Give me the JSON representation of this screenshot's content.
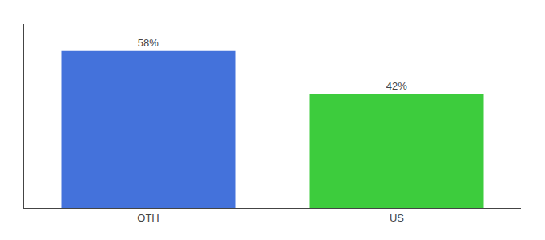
{
  "chart_data": {
    "type": "bar",
    "categories": [
      "OTH",
      "US"
    ],
    "values": [
      58,
      42
    ],
    "value_labels": [
      "58%",
      "42%"
    ],
    "colors": [
      "#4472db",
      "#3dcc3d"
    ],
    "ylim": [
      0,
      68
    ],
    "data_labels": true,
    "tick_labels": "x",
    "grid": false
  }
}
